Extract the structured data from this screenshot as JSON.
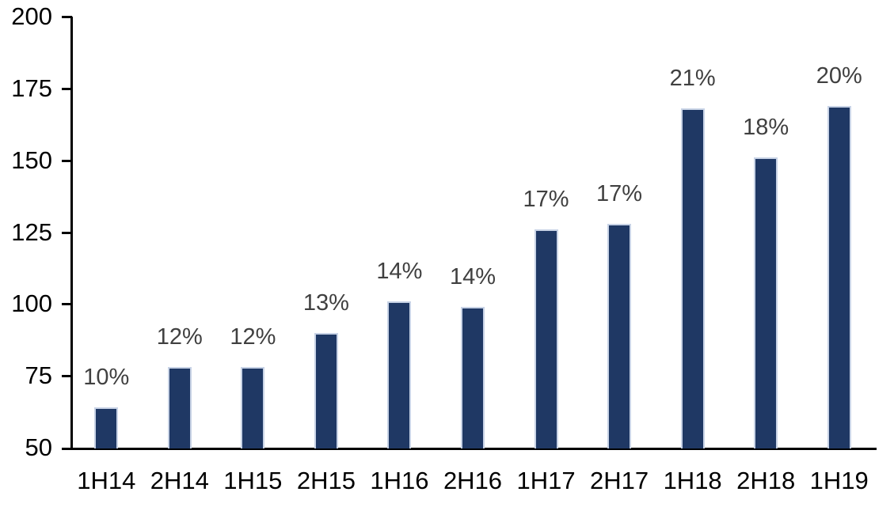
{
  "chart_data": {
    "type": "bar",
    "title": "",
    "xlabel": "",
    "ylabel": "",
    "categories": [
      "1H14",
      "2H14",
      "1H15",
      "2H15",
      "1H16",
      "2H16",
      "1H17",
      "2H17",
      "1H18",
      "2H18",
      "1H19"
    ],
    "values": [
      64,
      78,
      78,
      90,
      101,
      99,
      126,
      128,
      168,
      151,
      169
    ],
    "data_labels": [
      "10%",
      "12%",
      "12%",
      "13%",
      "14%",
      "14%",
      "17%",
      "17%",
      "21%",
      "18%",
      "20%"
    ],
    "ylim": [
      50,
      200
    ],
    "yticks": [
      50,
      75,
      100,
      125,
      150,
      175,
      200
    ],
    "grid": false,
    "legend": "none",
    "colors": {
      "bar_fill": "#1f3864",
      "bar_border": "#c8d3e6",
      "data_label": "#404040",
      "axis": "#000000",
      "tick_label": "#000000",
      "background": "#ffffff"
    }
  }
}
